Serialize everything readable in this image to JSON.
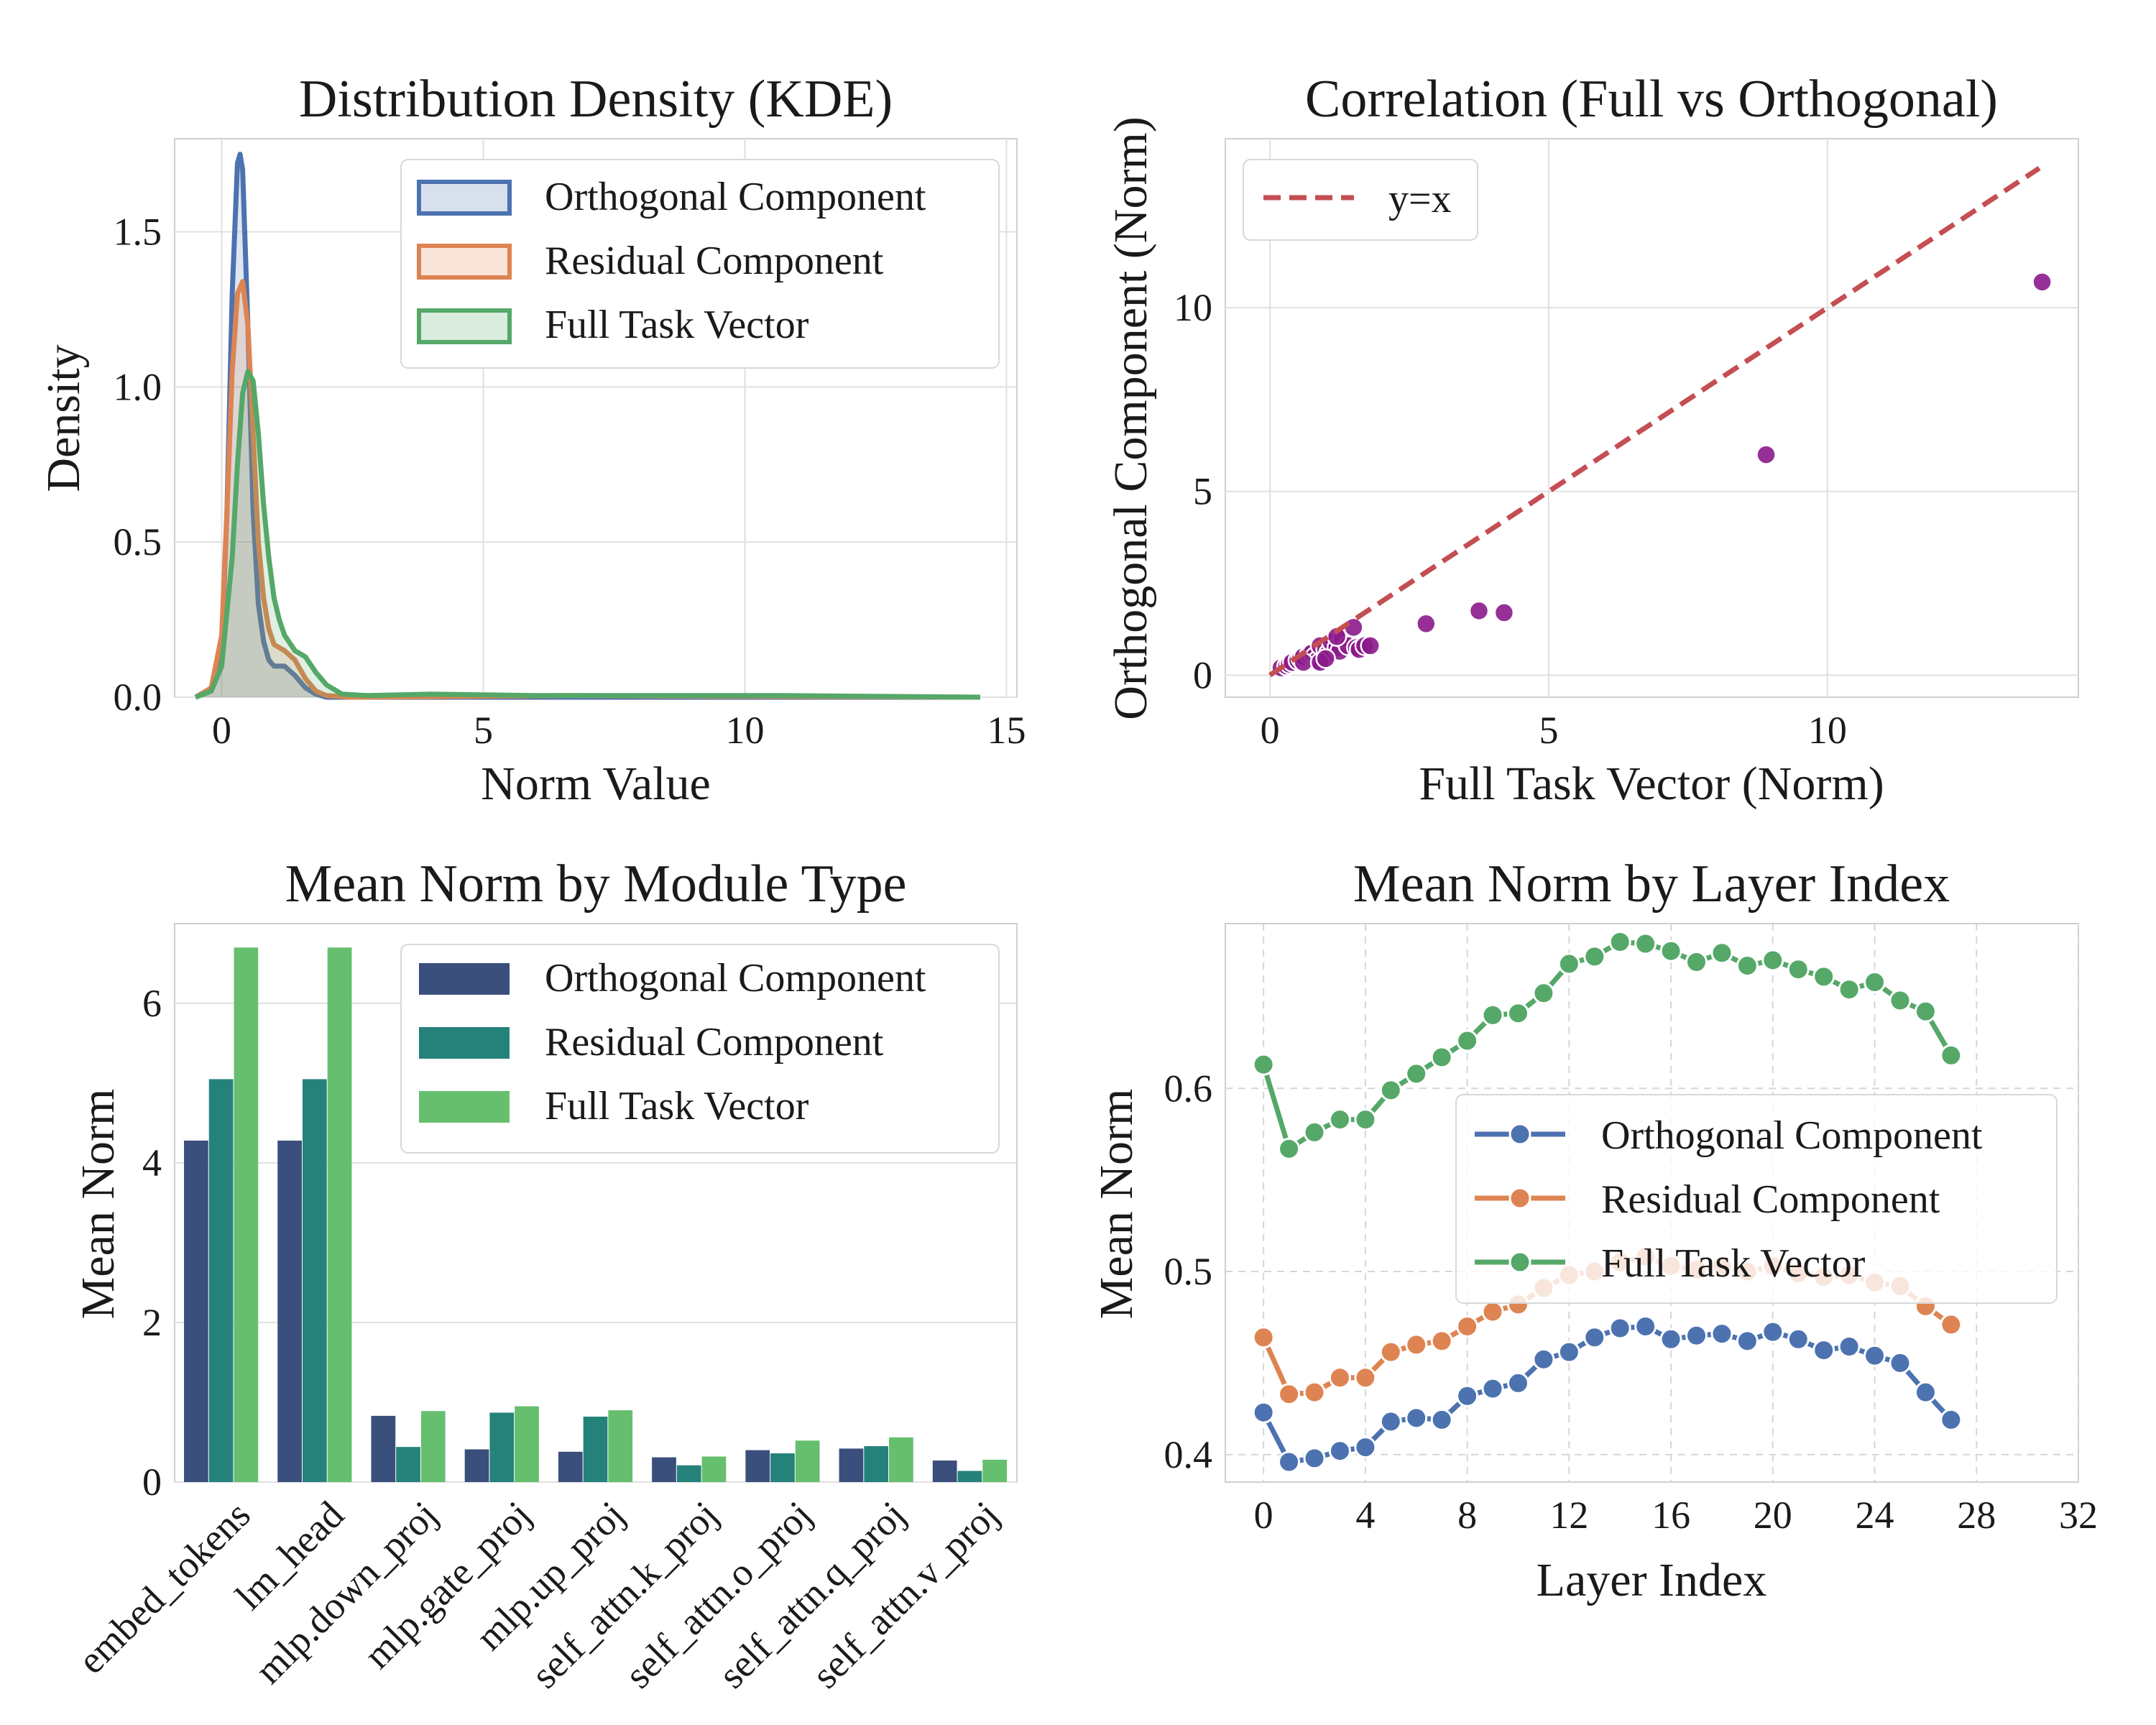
{
  "colors": {
    "orthogonal": "#4c72b0",
    "residual": "#dd8452",
    "full": "#55a868",
    "scatter": "#8b1a8b",
    "diag": "#c44e52",
    "bar_orthogonal": "#3b4f7d",
    "bar_residual": "#25827a",
    "bar_full": "#66bf6e",
    "grid": "#e0e0e0"
  },
  "chart_data": [
    {
      "type": "area",
      "title": "Distribution Density (KDE)",
      "xlabel": "Norm Value",
      "ylabel": "Density",
      "xlim": [
        -0.9,
        15.2
      ],
      "ylim": [
        0,
        1.8
      ],
      "xticks": [
        0,
        5,
        10,
        15
      ],
      "yticks": [
        0.0,
        0.5,
        1.0,
        1.5
      ],
      "ytick_labels": [
        "0.0",
        "0.5",
        "1.0",
        "1.5"
      ],
      "legend": [
        "Orthogonal Component",
        "Residual Component",
        "Full Task Vector"
      ],
      "legend_position": "top-right",
      "series": [
        {
          "name": "Orthogonal Component",
          "x": [
            -0.5,
            -0.2,
            0.0,
            0.1,
            0.2,
            0.3,
            0.35,
            0.4,
            0.5,
            0.6,
            0.7,
            0.8,
            0.9,
            1.0,
            1.2,
            1.4,
            1.6,
            1.8,
            2.0,
            2.5,
            5,
            10,
            14.5
          ],
          "y": [
            0,
            0.02,
            0.15,
            0.6,
            1.3,
            1.72,
            1.75,
            1.7,
            1.2,
            0.6,
            0.3,
            0.18,
            0.12,
            0.1,
            0.1,
            0.07,
            0.03,
            0.01,
            0.0,
            0.0,
            0.0,
            0.0,
            0.0
          ]
        },
        {
          "name": "Residual Component",
          "x": [
            -0.5,
            -0.2,
            0.0,
            0.1,
            0.2,
            0.3,
            0.4,
            0.5,
            0.6,
            0.7,
            0.8,
            0.9,
            1.0,
            1.2,
            1.4,
            1.6,
            1.8,
            2.0,
            2.5,
            6.5,
            14.5
          ],
          "y": [
            0,
            0.03,
            0.2,
            0.6,
            1.05,
            1.3,
            1.34,
            1.2,
            0.85,
            0.5,
            0.32,
            0.22,
            0.17,
            0.15,
            0.12,
            0.06,
            0.02,
            0.005,
            0.0,
            0.005,
            0.0
          ]
        },
        {
          "name": "Full Task Vector",
          "x": [
            -0.5,
            -0.2,
            0.0,
            0.2,
            0.3,
            0.4,
            0.5,
            0.6,
            0.7,
            0.8,
            0.9,
            1.0,
            1.1,
            1.2,
            1.4,
            1.6,
            1.8,
            2.0,
            2.3,
            2.8,
            4,
            6,
            9,
            10.7,
            14.5
          ],
          "y": [
            0,
            0.02,
            0.1,
            0.45,
            0.75,
            0.98,
            1.05,
            1.02,
            0.85,
            0.62,
            0.45,
            0.32,
            0.25,
            0.2,
            0.15,
            0.13,
            0.08,
            0.04,
            0.01,
            0.005,
            0.01,
            0.005,
            0.005,
            0.005,
            0.0
          ]
        }
      ]
    },
    {
      "type": "scatter",
      "title": "Correlation (Full vs Orthogonal)",
      "xlabel": "Full Task Vector (Norm)",
      "ylabel": "Orthogonal Component (Norm)",
      "xlim": [
        -0.8,
        14.5
      ],
      "ylim": [
        -0.6,
        14.6
      ],
      "xticks": [
        0,
        5,
        10
      ],
      "yticks": [
        0,
        5,
        10
      ],
      "legend": [
        "y=x"
      ],
      "legend_position": "top-left",
      "diag_line": [
        [
          0,
          0
        ],
        [
          13.8,
          13.8
        ]
      ],
      "points": [
        [
          0.2,
          0.2
        ],
        [
          0.3,
          0.25
        ],
        [
          0.35,
          0.3
        ],
        [
          0.4,
          0.35
        ],
        [
          0.5,
          0.4
        ],
        [
          0.55,
          0.45
        ],
        [
          0.6,
          0.5
        ],
        [
          0.7,
          0.55
        ],
        [
          0.75,
          0.6
        ],
        [
          0.8,
          0.5
        ],
        [
          0.85,
          0.4
        ],
        [
          0.9,
          0.8
        ],
        [
          1.0,
          0.7
        ],
        [
          1.05,
          0.6
        ],
        [
          1.1,
          0.9
        ],
        [
          1.2,
          0.75
        ],
        [
          1.25,
          0.65
        ],
        [
          1.3,
          1.0
        ],
        [
          1.4,
          0.8
        ],
        [
          1.5,
          1.3
        ],
        [
          1.55,
          0.75
        ],
        [
          1.6,
          0.7
        ],
        [
          1.7,
          0.8
        ],
        [
          1.8,
          0.8
        ],
        [
          0.6,
          0.35
        ],
        [
          0.9,
          0.35
        ],
        [
          1.0,
          0.45
        ],
        [
          1.2,
          1.05
        ],
        [
          2.8,
          1.4
        ],
        [
          3.75,
          1.75
        ],
        [
          4.2,
          1.7
        ],
        [
          8.9,
          6.0
        ],
        [
          13.85,
          10.7
        ]
      ]
    },
    {
      "type": "bar",
      "title": "Mean Norm by Module Type",
      "xlabel": "",
      "ylabel": "Mean Norm",
      "ylim": [
        0,
        7.0
      ],
      "yticks": [
        0,
        2,
        4,
        6
      ],
      "legend": [
        "Orthogonal Component",
        "Residual Component",
        "Full Task Vector"
      ],
      "legend_position": "top-right",
      "categories": [
        "embed_tokens",
        "lm_head",
        "mlp.down_proj",
        "mlp.gate_proj",
        "mlp.up_proj",
        "self_attn.k_proj",
        "self_attn.o_proj",
        "self_attn.q_proj",
        "self_attn.v_proj"
      ],
      "series": [
        {
          "name": "Orthogonal Component",
          "values": [
            4.28,
            4.28,
            0.83,
            0.41,
            0.38,
            0.31,
            0.4,
            0.42,
            0.27
          ]
        },
        {
          "name": "Residual Component",
          "values": [
            5.05,
            5.05,
            0.44,
            0.87,
            0.82,
            0.21,
            0.36,
            0.45,
            0.14
          ]
        },
        {
          "name": "Full Task Vector",
          "values": [
            6.7,
            6.7,
            0.89,
            0.95,
            0.9,
            0.32,
            0.52,
            0.56,
            0.28
          ]
        }
      ]
    },
    {
      "type": "line",
      "title": "Mean Norm by Layer Index",
      "xlabel": "Layer Index",
      "ylabel": "Mean Norm",
      "xlim": [
        -1.5,
        32
      ],
      "ylim": [
        0.385,
        0.69
      ],
      "xticks": [
        0,
        4,
        8,
        12,
        16,
        20,
        24,
        28,
        32
      ],
      "yticks": [
        0.4,
        0.5,
        0.6
      ],
      "ytick_labels": [
        "0.4",
        "0.5",
        "0.6"
      ],
      "legend": [
        "Orthogonal Component",
        "Residual Component",
        "Full Task Vector"
      ],
      "legend_position": "center-right",
      "x": [
        0,
        1,
        2,
        3,
        4,
        5,
        6,
        7,
        8,
        9,
        10,
        11,
        12,
        13,
        14,
        15,
        16,
        17,
        18,
        19,
        20,
        21,
        22,
        23,
        24,
        25,
        26,
        27
      ],
      "series": [
        {
          "name": "Orthogonal Component",
          "values": [
            0.423,
            0.396,
            0.398,
            0.402,
            0.404,
            0.418,
            0.42,
            0.419,
            0.432,
            0.436,
            0.439,
            0.452,
            0.456,
            0.464,
            0.469,
            0.47,
            0.463,
            0.465,
            0.466,
            0.462,
            0.467,
            0.463,
            0.457,
            0.459,
            0.454,
            0.45,
            0.434,
            0.419
          ]
        },
        {
          "name": "Residual Component",
          "values": [
            0.464,
            0.433,
            0.434,
            0.442,
            0.442,
            0.456,
            0.46,
            0.462,
            0.47,
            0.478,
            0.482,
            0.491,
            0.498,
            0.5,
            0.505,
            0.508,
            0.503,
            0.501,
            0.503,
            0.5,
            0.503,
            0.499,
            0.497,
            0.498,
            0.494,
            0.492,
            0.481,
            0.471
          ]
        },
        {
          "name": "Full Task Vector",
          "values": [
            0.613,
            0.567,
            0.576,
            0.583,
            0.583,
            0.599,
            0.608,
            0.617,
            0.626,
            0.64,
            0.641,
            0.652,
            0.668,
            0.672,
            0.68,
            0.679,
            0.675,
            0.669,
            0.674,
            0.667,
            0.67,
            0.665,
            0.661,
            0.654,
            0.658,
            0.648,
            0.642,
            0.618
          ]
        }
      ]
    }
  ]
}
